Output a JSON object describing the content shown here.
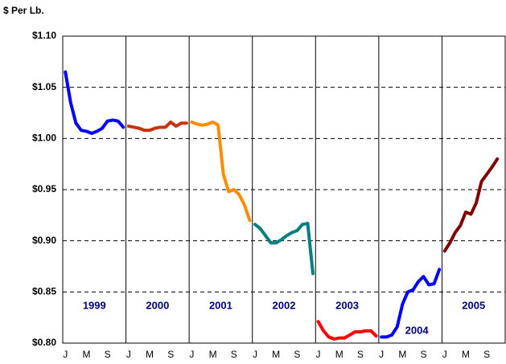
{
  "chart_data": {
    "type": "line",
    "y_label": "$ Per Lb.",
    "categories": [
      "J",
      null,
      null,
      null,
      "M",
      null,
      null,
      null,
      "S",
      null,
      null,
      null,
      "J",
      null,
      null,
      null,
      "M",
      null,
      null,
      null,
      "S",
      null,
      null,
      null,
      "J",
      null,
      null,
      null,
      "M",
      null,
      null,
      null,
      "S",
      null,
      null,
      null,
      "J",
      null,
      null,
      null,
      "M",
      null,
      null,
      null,
      "S",
      null,
      null,
      null,
      "J",
      null,
      null,
      null,
      "M",
      null,
      null,
      null,
      "S",
      null,
      null,
      null,
      "J",
      null,
      null,
      null,
      "M",
      null,
      null,
      null,
      "S",
      null,
      null,
      null,
      "J",
      null,
      null,
      null,
      "M",
      null,
      null,
      null,
      "S",
      null,
      null,
      null
    ],
    "series": [
      {
        "name": "1999",
        "color": "#0000ff",
        "values": [
          1.065,
          1.035,
          1.015,
          1.008,
          1.007,
          1.005,
          1.007,
          1.01,
          1.017,
          1.018,
          1.017,
          1.011,
          null,
          null,
          null,
          null,
          null,
          null,
          null,
          null,
          null,
          null,
          null,
          null,
          null,
          null,
          null,
          null,
          null,
          null,
          null,
          null,
          null,
          null,
          null,
          null,
          null,
          null,
          null,
          null,
          null,
          null,
          null,
          null,
          null,
          null,
          null,
          null,
          null,
          null,
          null,
          null,
          null,
          null,
          null,
          null,
          null,
          null,
          null,
          null,
          null,
          null,
          null,
          null,
          null,
          null,
          null,
          null,
          null,
          null,
          null,
          null,
          null,
          null,
          null,
          null,
          null,
          null,
          null,
          null,
          null,
          null,
          null,
          null
        ]
      },
      {
        "name": "2000",
        "color": "#c8320a",
        "values": [
          null,
          null,
          null,
          null,
          null,
          null,
          null,
          null,
          null,
          null,
          null,
          null,
          1.012,
          1.011,
          1.01,
          1.008,
          1.008,
          1.01,
          1.011,
          1.011,
          1.016,
          1.012,
          1.015,
          1.015,
          null,
          null,
          null,
          null,
          null,
          null,
          null,
          null,
          null,
          null,
          null,
          null,
          null,
          null,
          null,
          null,
          null,
          null,
          null,
          null,
          null,
          null,
          null,
          null,
          null,
          null,
          null,
          null,
          null,
          null,
          null,
          null,
          null,
          null,
          null,
          null,
          null,
          null,
          null,
          null,
          null,
          null,
          null,
          null,
          null,
          null,
          null,
          null,
          null,
          null,
          null,
          null,
          null,
          null,
          null,
          null,
          null,
          null,
          null,
          null
        ]
      },
      {
        "name": "2001",
        "color": "#ff8c00",
        "values": [
          null,
          null,
          null,
          null,
          null,
          null,
          null,
          null,
          null,
          null,
          null,
          null,
          null,
          null,
          null,
          null,
          null,
          null,
          null,
          null,
          null,
          null,
          null,
          null,
          1.016,
          1.014,
          1.013,
          1.014,
          1.016,
          1.013,
          0.965,
          0.948,
          0.95,
          0.945,
          0.935,
          0.92,
          null,
          null,
          null,
          null,
          null,
          null,
          null,
          null,
          null,
          null,
          null,
          null,
          null,
          null,
          null,
          null,
          null,
          null,
          null,
          null,
          null,
          null,
          null,
          null,
          null,
          null,
          null,
          null,
          null,
          null,
          null,
          null,
          null,
          null,
          null,
          null,
          null,
          null,
          null,
          null,
          null,
          null,
          null,
          null,
          null,
          null,
          null,
          null
        ]
      },
      {
        "name": "2002",
        "color": "#008080",
        "values": [
          null,
          null,
          null,
          null,
          null,
          null,
          null,
          null,
          null,
          null,
          null,
          null,
          null,
          null,
          null,
          null,
          null,
          null,
          null,
          null,
          null,
          null,
          null,
          null,
          null,
          null,
          null,
          null,
          null,
          null,
          null,
          null,
          null,
          null,
          null,
          null,
          0.916,
          0.912,
          0.905,
          0.898,
          0.898,
          0.901,
          0.905,
          0.908,
          0.91,
          0.916,
          0.917,
          0.868,
          null,
          null,
          null,
          null,
          null,
          null,
          null,
          null,
          null,
          null,
          null,
          null,
          null,
          null,
          null,
          null,
          null,
          null,
          null,
          null,
          null,
          null,
          null,
          null,
          null,
          null,
          null,
          null,
          null,
          null,
          null,
          null,
          null,
          null,
          null,
          null
        ]
      },
      {
        "name": "2003",
        "color": "#ff0000",
        "values": [
          null,
          null,
          null,
          null,
          null,
          null,
          null,
          null,
          null,
          null,
          null,
          null,
          null,
          null,
          null,
          null,
          null,
          null,
          null,
          null,
          null,
          null,
          null,
          null,
          null,
          null,
          null,
          null,
          null,
          null,
          null,
          null,
          null,
          null,
          null,
          null,
          null,
          null,
          null,
          null,
          null,
          null,
          null,
          null,
          null,
          null,
          null,
          null,
          0.821,
          0.812,
          0.806,
          0.804,
          0.805,
          0.805,
          0.808,
          0.811,
          0.811,
          0.812,
          0.812,
          0.807,
          null,
          null,
          null,
          null,
          null,
          null,
          null,
          null,
          null,
          null,
          null,
          null,
          null,
          null,
          null,
          null,
          null,
          null,
          null,
          null,
          null,
          null,
          null,
          null
        ]
      },
      {
        "name": "2004",
        "color": "#0000ff",
        "values": [
          null,
          null,
          null,
          null,
          null,
          null,
          null,
          null,
          null,
          null,
          null,
          null,
          null,
          null,
          null,
          null,
          null,
          null,
          null,
          null,
          null,
          null,
          null,
          null,
          null,
          null,
          null,
          null,
          null,
          null,
          null,
          null,
          null,
          null,
          null,
          null,
          null,
          null,
          null,
          null,
          null,
          null,
          null,
          null,
          null,
          null,
          null,
          null,
          null,
          null,
          null,
          null,
          null,
          null,
          null,
          null,
          null,
          null,
          null,
          null,
          0.806,
          0.806,
          0.808,
          0.816,
          0.838,
          0.85,
          0.852,
          0.86,
          0.865,
          0.857,
          0.858,
          0.872,
          null,
          null,
          null,
          null,
          null,
          null,
          null,
          null,
          null,
          null,
          null,
          null
        ]
      },
      {
        "name": "2005",
        "color": "#800000",
        "values": [
          null,
          null,
          null,
          null,
          null,
          null,
          null,
          null,
          null,
          null,
          null,
          null,
          null,
          null,
          null,
          null,
          null,
          null,
          null,
          null,
          null,
          null,
          null,
          null,
          null,
          null,
          null,
          null,
          null,
          null,
          null,
          null,
          null,
          null,
          null,
          null,
          null,
          null,
          null,
          null,
          null,
          null,
          null,
          null,
          null,
          null,
          null,
          null,
          null,
          null,
          null,
          null,
          null,
          null,
          null,
          null,
          null,
          null,
          null,
          null,
          null,
          null,
          null,
          null,
          null,
          null,
          null,
          null,
          null,
          null,
          null,
          null,
          0.89,
          0.898,
          0.908,
          0.915,
          0.928,
          0.926,
          0.937,
          0.958,
          0.965,
          0.972,
          0.98,
          null
        ]
      }
    ],
    "ylim": [
      0.8,
      1.1
    ],
    "yticks": [
      {
        "value": 0.8,
        "label": "$0.80"
      },
      {
        "value": 0.85,
        "label": "$0.85"
      },
      {
        "value": 0.9,
        "label": "$0.90"
      },
      {
        "value": 0.95,
        "label": "$0.95"
      },
      {
        "value": 1.0,
        "label": "$1.00"
      },
      {
        "value": 1.05,
        "label": "$1.05"
      },
      {
        "value": 1.1,
        "label": "$1.10"
      }
    ],
    "grid": true
  }
}
